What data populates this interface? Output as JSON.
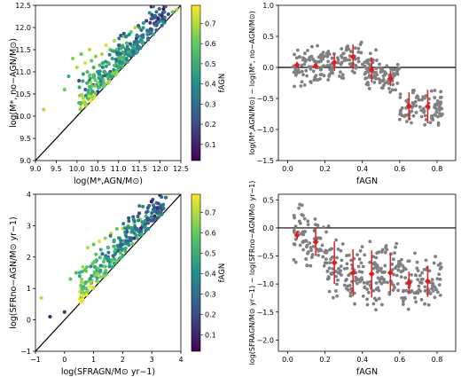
{
  "figure": {
    "colormap": [
      "#440154",
      "#3b528b",
      "#21918c",
      "#5ec962",
      "#fde725"
    ],
    "scatter_color": "#808080",
    "median_color": "#e41a1c",
    "line_color": "#000000"
  },
  "chart_data": [
    {
      "id": "mass_scatter",
      "type": "scatter",
      "title": "",
      "xlabel": "log(M*,AGN/M⊙)",
      "ylabel": "log(M*, no−AGN/M⊙)",
      "xlim": [
        9.0,
        12.5
      ],
      "ylim": [
        9.0,
        12.5
      ],
      "xticks": [
        "9.0",
        "9.5",
        "10.0",
        "10.5",
        "11.0",
        "11.5",
        "12.0",
        "12.5"
      ],
      "yticks": [
        "9.0",
        "9.5",
        "10.0",
        "10.5",
        "11.0",
        "11.5",
        "12.0",
        "12.5"
      ],
      "one_to_one_line": true,
      "colorbar": {
        "label": "fAGN",
        "ticks": [
          "0.1",
          "0.2",
          "0.3",
          "0.4",
          "0.5",
          "0.6",
          "0.7"
        ],
        "range": [
          0.02,
          0.79
        ]
      },
      "points_described": "~350 galaxies; y ≥ x; spread 9.2–12.4 in x, 10.0–12.4 in y",
      "x": [
        9.2,
        9.7,
        9.8,
        9.9,
        10.0,
        10.05,
        10.1,
        10.15,
        10.2,
        10.2,
        10.25,
        10.3,
        10.3,
        10.35,
        10.4,
        10.4,
        10.45,
        10.5,
        10.5,
        10.55,
        10.6,
        10.6,
        10.65,
        10.7,
        10.7,
        10.75,
        10.8,
        10.8,
        10.85,
        10.9,
        10.9,
        10.95,
        11.0,
        11.0,
        11.05,
        11.1,
        11.1,
        11.15,
        11.2,
        11.2,
        11.25,
        11.3,
        11.3,
        11.35,
        11.4,
        11.4,
        11.45,
        11.5,
        11.5,
        11.55,
        11.6,
        11.6,
        11.7,
        11.8,
        11.9,
        12.0,
        12.1,
        12.2,
        12.3,
        12.4
      ],
      "y": [
        10.15,
        10.6,
        10.9,
        11.3,
        11.1,
        10.8,
        11.4,
        10.95,
        11.2,
        10.6,
        11.0,
        11.5,
        10.8,
        11.25,
        11.1,
        10.7,
        11.35,
        11.0,
        10.55,
        11.15,
        11.4,
        10.9,
        11.0,
        11.6,
        10.95,
        11.2,
        11.5,
        11.0,
        11.3,
        11.7,
        11.0,
        11.2,
        11.6,
        11.1,
        11.3,
        11.8,
        11.2,
        11.4,
        11.65,
        11.25,
        11.5,
        11.9,
        11.35,
        11.5,
        12.0,
        11.45,
        11.6,
        12.0,
        11.55,
        11.7,
        12.1,
        11.65,
        11.85,
        11.95,
        12.05,
        12.15,
        12.2,
        12.3,
        12.35,
        12.4
      ],
      "c": [
        0.7,
        0.6,
        0.5,
        0.65,
        0.7,
        0.2,
        0.6,
        0.45,
        0.75,
        0.3,
        0.55,
        0.7,
        0.35,
        0.6,
        0.5,
        0.1,
        0.65,
        0.4,
        0.15,
        0.55,
        0.7,
        0.3,
        0.45,
        0.75,
        0.25,
        0.5,
        0.6,
        0.2,
        0.45,
        0.7,
        0.15,
        0.35,
        0.6,
        0.1,
        0.3,
        0.65,
        0.2,
        0.4,
        0.55,
        0.1,
        0.35,
        0.6,
        0.15,
        0.3,
        0.7,
        0.1,
        0.25,
        0.5,
        0.1,
        0.2,
        0.45,
        0.1,
        0.2,
        0.3,
        0.15,
        0.4,
        0.1,
        0.2,
        0.6,
        0.7
      ]
    },
    {
      "id": "mass_diff",
      "type": "scatter",
      "title": "",
      "xlabel": "fAGN",
      "ylabel": "log(M*,AGN/M⊙) − log(M*, no−AGN/M⊙)",
      "xlim": [
        -0.05,
        0.9
      ],
      "ylim": [
        -1.5,
        1.0
      ],
      "xticks": [
        "0.0",
        "0.2",
        "0.4",
        "0.6",
        "0.8"
      ],
      "yticks": [
        "−1.5",
        "−1.0",
        "−0.5",
        "0.0",
        "0.5",
        "1.0"
      ],
      "zero_line": 0.0,
      "points_described": "~350 gray points",
      "medians": {
        "x": [
          0.05,
          0.15,
          0.25,
          0.35,
          0.45,
          0.55,
          0.65,
          0.75
        ],
        "y": [
          0.04,
          0.02,
          0.08,
          0.17,
          -0.04,
          -0.18,
          -0.62,
          -0.63
        ],
        "err": [
          0.05,
          0.04,
          0.14,
          0.2,
          0.2,
          0.12,
          0.22,
          0.27
        ]
      }
    },
    {
      "id": "sfr_scatter",
      "type": "scatter",
      "title": "",
      "xlabel": "log(SFRAGN/M⊙ yr−1)",
      "ylabel": "log(SFRno−AGN/M⊙ yr−1)",
      "xlim": [
        -1,
        4
      ],
      "ylim": [
        -1,
        4
      ],
      "xticks": [
        "−1",
        "0",
        "1",
        "2",
        "3",
        "4"
      ],
      "yticks": [
        "−1",
        "0",
        "1",
        "2",
        "3",
        "4"
      ],
      "one_to_one_line": true,
      "colorbar": {
        "label": "fAGN",
        "ticks": [
          "0.1",
          "0.2",
          "0.3",
          "0.4",
          "0.5",
          "0.6",
          "0.7"
        ],
        "range": [
          0.02,
          0.79
        ]
      },
      "points_described": "~350 galaxies; y ≥ x",
      "x": [
        -0.8,
        -0.5,
        0.0,
        0.2,
        0.4,
        0.6,
        0.8,
        0.9,
        1.0,
        1.1,
        1.2,
        1.3,
        1.4,
        1.5,
        1.5,
        1.6,
        1.7,
        1.8,
        1.8,
        1.9,
        2.0,
        2.0,
        2.1,
        2.2,
        2.2,
        2.3,
        2.4,
        2.4,
        2.5,
        2.6,
        2.6,
        2.7,
        2.8,
        2.9,
        3.0,
        3.1,
        3.2,
        3.3,
        3.4,
        3.5
      ],
      "y": [
        0.7,
        0.1,
        0.25,
        1.3,
        1.5,
        0.9,
        2.3,
        1.7,
        2.4,
        1.9,
        2.5,
        2.1,
        2.6,
        2.3,
        2.0,
        2.75,
        2.5,
        2.9,
        2.2,
        2.6,
        2.9,
        2.4,
        2.7,
        3.0,
        2.5,
        2.8,
        3.1,
        2.6,
        2.9,
        3.2,
        2.8,
        3.1,
        3.3,
        3.2,
        3.4,
        3.3,
        3.5,
        3.6,
        3.55,
        3.9
      ],
      "c": [
        0.7,
        0.1,
        0.15,
        0.6,
        0.55,
        0.3,
        0.7,
        0.4,
        0.6,
        0.5,
        0.75,
        0.3,
        0.65,
        0.5,
        0.2,
        0.7,
        0.45,
        0.6,
        0.15,
        0.55,
        0.75,
        0.3,
        0.5,
        0.7,
        0.2,
        0.45,
        0.6,
        0.1,
        0.4,
        0.65,
        0.1,
        0.35,
        0.5,
        0.2,
        0.3,
        0.1,
        0.6,
        0.2,
        0.1,
        0.7
      ]
    },
    {
      "id": "sfr_diff",
      "type": "scatter",
      "title": "",
      "xlabel": "fAGN",
      "ylabel": "log(SFRAGN/M⊙ yr−1) − log(SFRno−AGN/M⊙ yr−1)",
      "xlim": [
        -0.05,
        0.9
      ],
      "ylim": [
        -2.2,
        0.6
      ],
      "xticks": [
        "0.0",
        "0.2",
        "0.4",
        "0.6",
        "0.8"
      ],
      "yticks": [
        "−2.0",
        "−1.5",
        "−1.0",
        "−0.5",
        "0.0",
        "0.5"
      ],
      "zero_line": 0.0,
      "points_described": "~350 gray points",
      "medians": {
        "x": [
          0.05,
          0.15,
          0.25,
          0.35,
          0.45,
          0.55,
          0.65,
          0.75
        ],
        "y": [
          -0.13,
          -0.25,
          -0.62,
          -0.8,
          -0.82,
          -0.8,
          -0.98,
          -0.95
        ],
        "err": [
          0.07,
          0.25,
          0.38,
          0.42,
          0.42,
          0.35,
          0.2,
          0.28
        ]
      }
    }
  ]
}
